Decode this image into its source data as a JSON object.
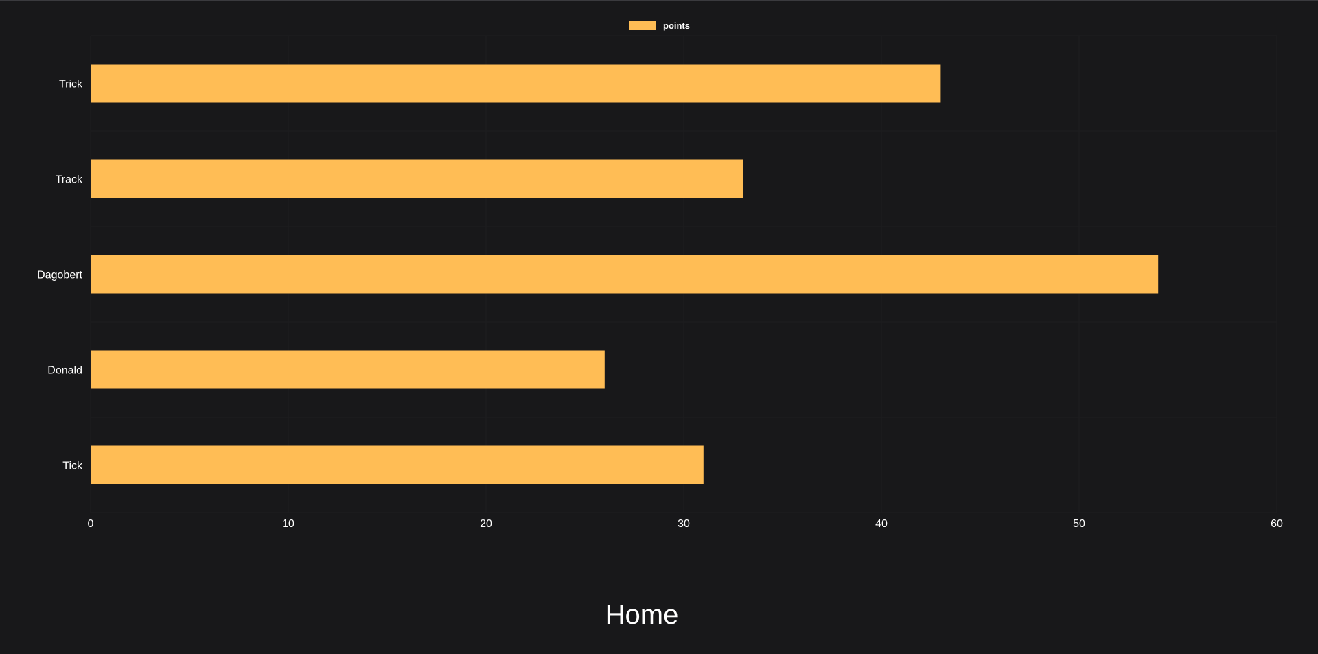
{
  "page": {
    "title": "Home"
  },
  "colors": {
    "background": "#18181a",
    "bar": "#ffbd55",
    "text": "#ffffff",
    "grid": "#1e1e20"
  },
  "chart_data": {
    "type": "bar",
    "orientation": "horizontal",
    "categories": [
      "Trick",
      "Track",
      "Dagobert",
      "Donald",
      "Tick"
    ],
    "series": [
      {
        "name": "points",
        "values": [
          43,
          33,
          54,
          26,
          31
        ]
      }
    ],
    "xlim": [
      0,
      60
    ],
    "x_ticks": [
      0,
      10,
      20,
      30,
      40,
      50,
      60
    ],
    "legend": "top-center",
    "grid": false
  }
}
